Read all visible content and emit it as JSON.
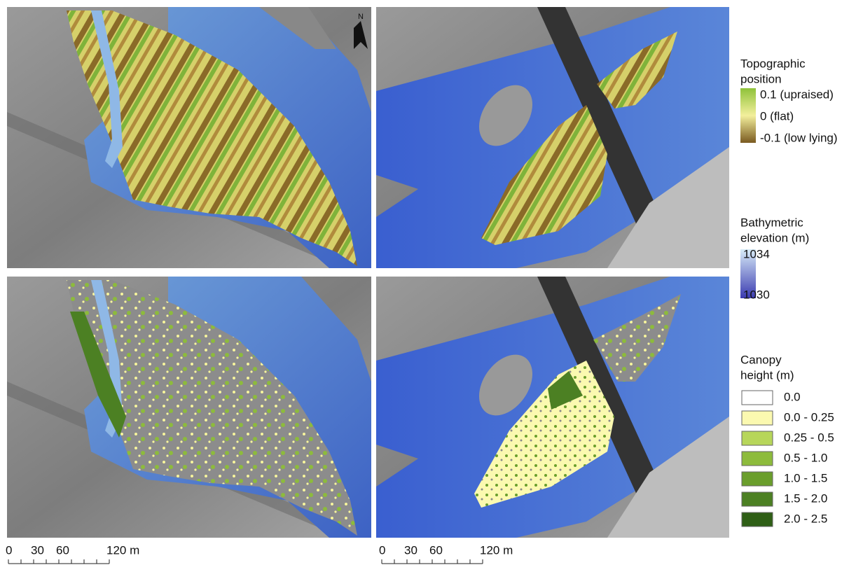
{
  "north_arrow": "N",
  "legends": {
    "topographic": {
      "title": [
        "Topographic",
        "position"
      ],
      "items": [
        "0.1 (upraised)",
        "0 (flat)",
        "-0.1 (low lying)"
      ]
    },
    "bathymetric": {
      "title": [
        "Bathymetric",
        "elevation (m)"
      ],
      "items": [
        "1034",
        "1030"
      ]
    },
    "canopy": {
      "title": [
        "Canopy",
        "height (m)"
      ],
      "items": [
        {
          "label": "0.0",
          "color": "#ffffff"
        },
        {
          "label": "0.0 - 0.25",
          "color": "#fbf9b0"
        },
        {
          "label": "0.25 - 0.5",
          "color": "#b7d65a"
        },
        {
          "label": "0.5 - 1.0",
          "color": "#8dbb3c"
        },
        {
          "label": "1.0 - 1.5",
          "color": "#6a9e2c"
        },
        {
          "label": "1.5 - 2.0",
          "color": "#4c8023"
        },
        {
          "label": "2.0 - 2.5",
          "color": "#2f5f16"
        }
      ]
    }
  },
  "scale_bars": [
    {
      "labels": [
        "0",
        "30",
        "60",
        "120 m"
      ]
    },
    {
      "labels": [
        "0",
        "30",
        "60",
        "120 m"
      ]
    }
  ]
}
